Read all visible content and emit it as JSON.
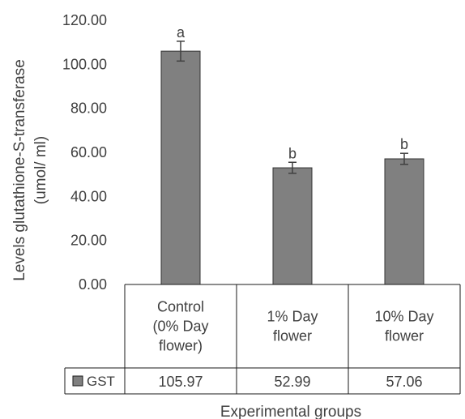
{
  "chart_data": {
    "type": "bar",
    "title": "",
    "ylabel": "Levels glutathione-S-transferase (umol/ ml)",
    "ylabel_lines": [
      "Levels glutathione-S-transferase",
      "(umol/ ml)"
    ],
    "xlabel": "Experimental groups",
    "ylim": [
      0,
      120
    ],
    "y_ticks": [
      "0.00",
      "20.00",
      "40.00",
      "60.00",
      "80.00",
      "100.00",
      "120.00"
    ],
    "categories": [
      "Control (0% Day flower)",
      "1% Day flower",
      "10% Day flower"
    ],
    "category_lines": [
      [
        "Control",
        "(0% Day",
        "flower)"
      ],
      [
        "1% Day",
        "flower"
      ],
      [
        "10% Day",
        "flower"
      ]
    ],
    "series": [
      {
        "name": "GST",
        "values": [
          105.97,
          52.99,
          57.06
        ],
        "value_labels": [
          "105.97",
          "52.99",
          "57.06"
        ],
        "error": [
          4.5,
          2.5,
          2.5
        ],
        "color": "#808080",
        "edge_color": "#333333"
      }
    ],
    "significance_letters": [
      "a",
      "b",
      "b"
    ],
    "data_table": true,
    "grid": false
  }
}
